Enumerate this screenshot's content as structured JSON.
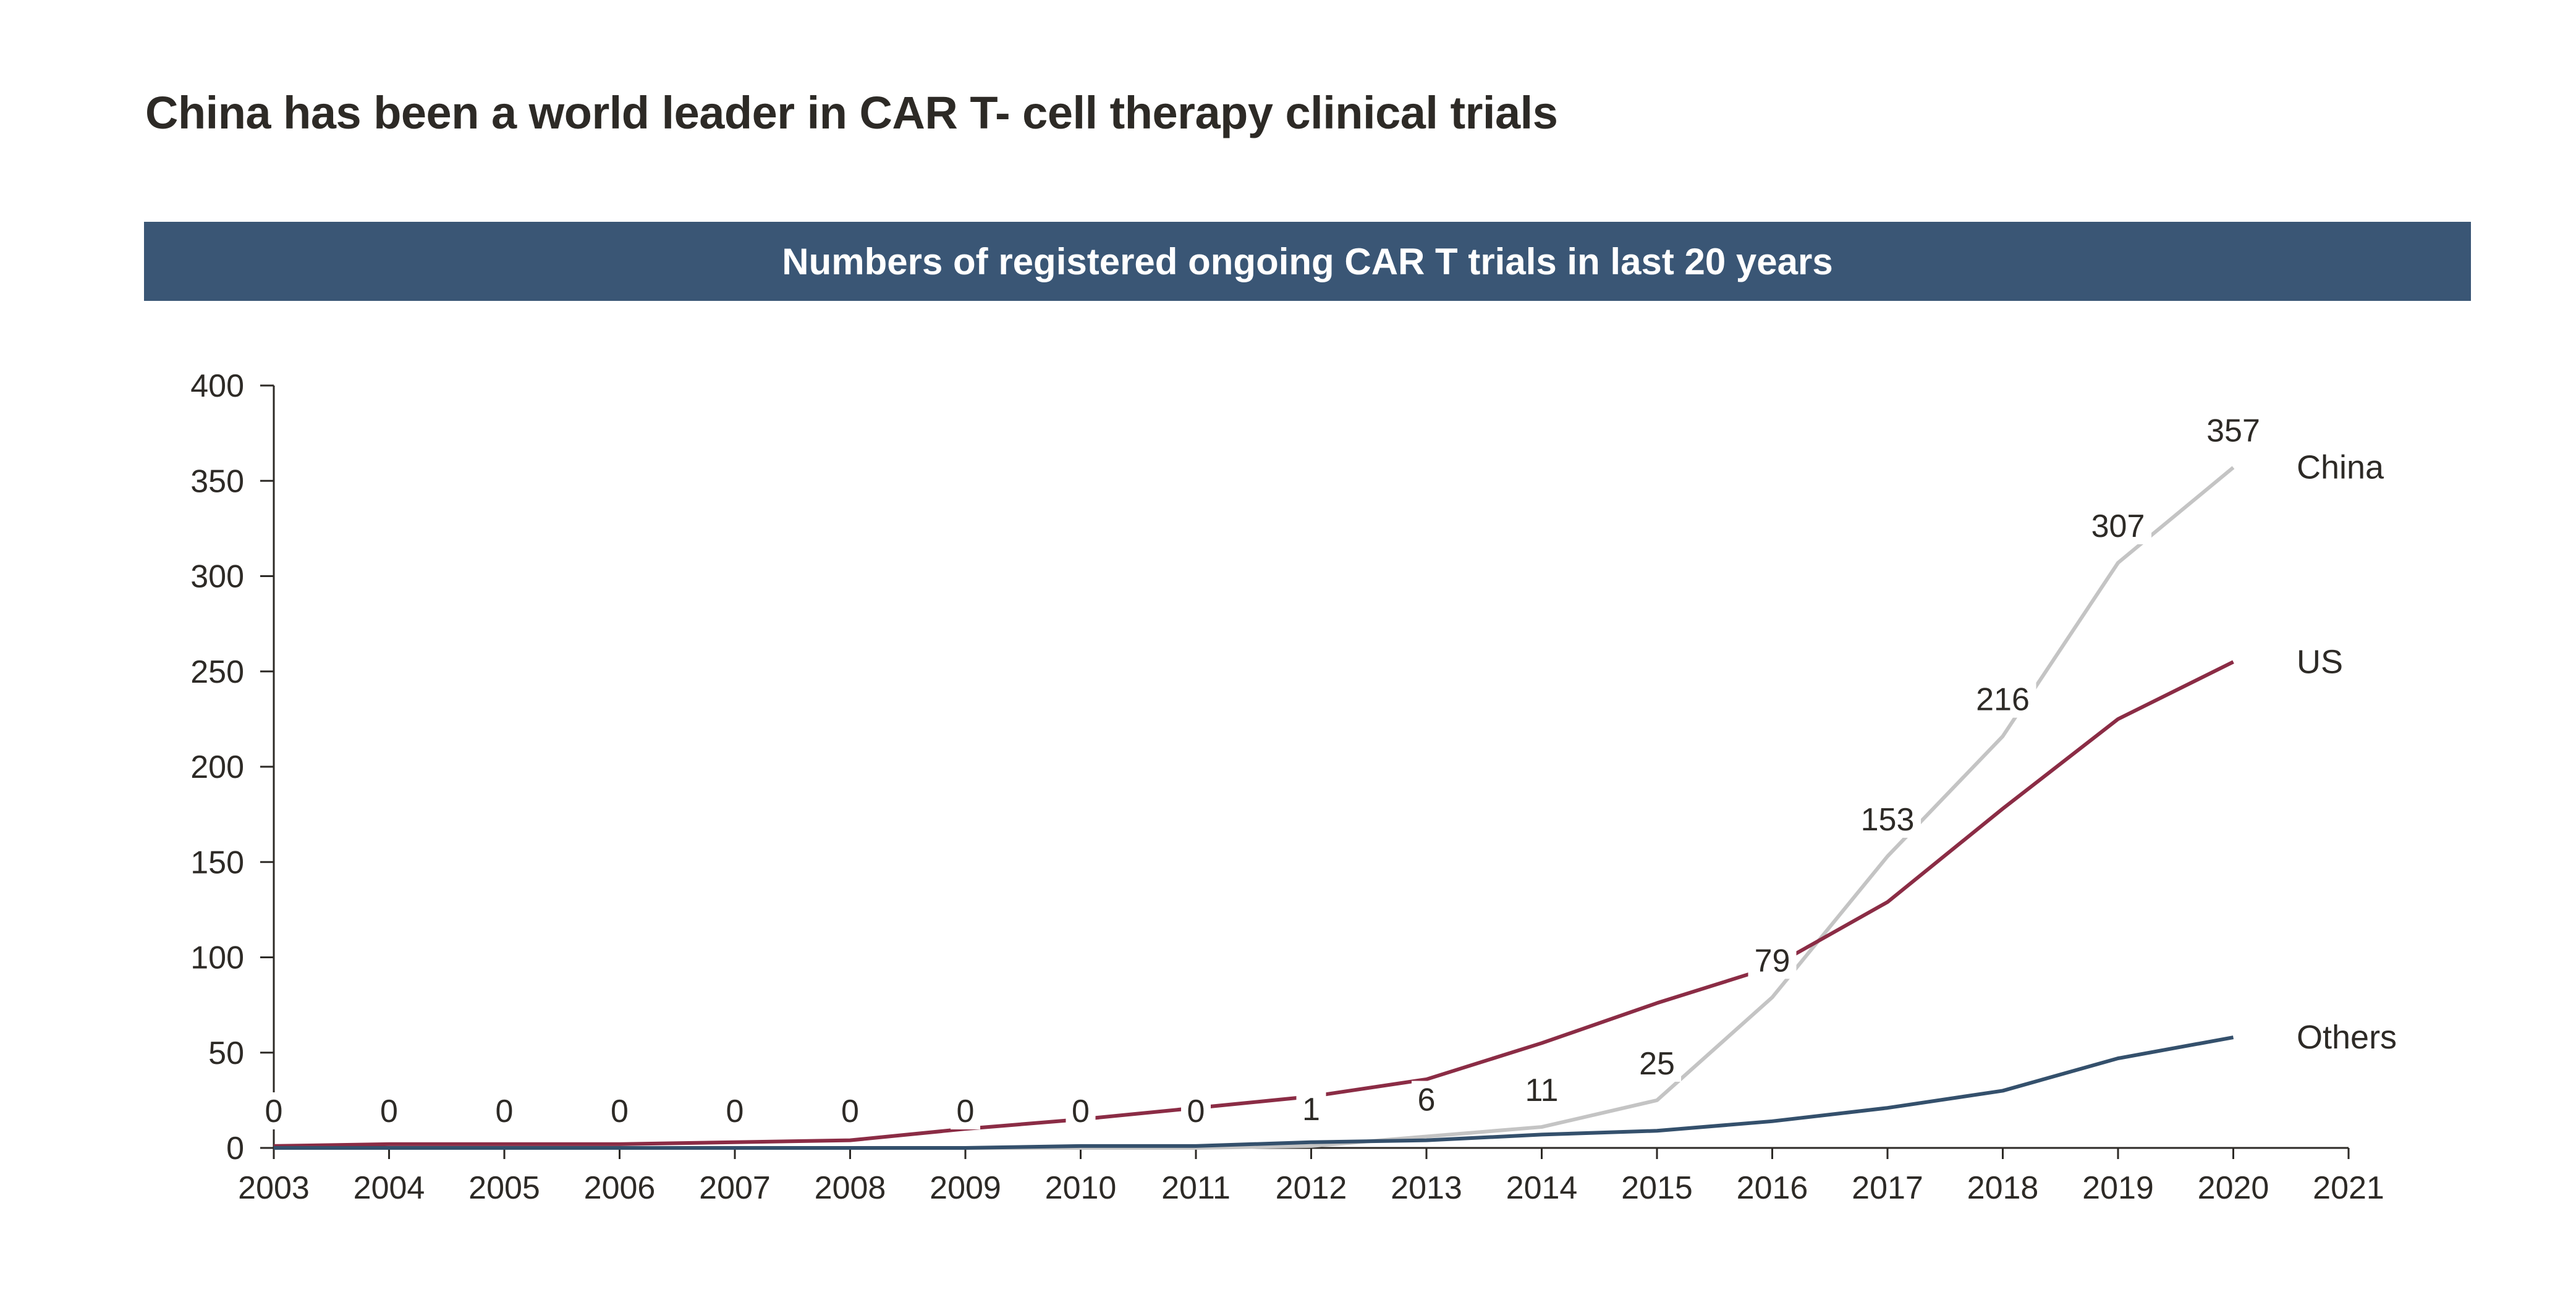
{
  "title": "China has been a world leader in CAR T- cell therapy clinical trials",
  "banner_color": "#3a5675",
  "chart_data": {
    "type": "line",
    "title": "Numbers of registered ongoing CAR T trials in last 20 years",
    "xlabel": "",
    "ylabel": "",
    "x": [
      2003,
      2004,
      2005,
      2006,
      2007,
      2008,
      2009,
      2010,
      2011,
      2012,
      2013,
      2014,
      2015,
      2016,
      2017,
      2018,
      2019,
      2020
    ],
    "x_ticks": [
      "2003",
      "2004",
      "2005",
      "2006",
      "2007",
      "2008",
      "2009",
      "2010",
      "2011",
      "2012",
      "2013",
      "2014",
      "2015",
      "2016",
      "2017",
      "2018",
      "2019",
      "2020",
      "2021"
    ],
    "xlim": [
      2003,
      2021
    ],
    "ylim": [
      0,
      400
    ],
    "y_ticks": [
      "0",
      "50",
      "100",
      "150",
      "200",
      "250",
      "300",
      "350",
      "400"
    ],
    "grid": false,
    "series": [
      {
        "name": "China",
        "color": "#c4c4c4",
        "values": [
          0,
          0,
          0,
          0,
          0,
          0,
          0,
          0,
          0,
          1,
          6,
          11,
          25,
          79,
          153,
          216,
          307,
          357
        ],
        "data_labels": [
          "0",
          "0",
          "0",
          "0",
          "0",
          "0",
          "0",
          "0",
          "0",
          "1",
          "6",
          "11",
          "25",
          "79",
          "153",
          "216",
          "307",
          "357"
        ]
      },
      {
        "name": "US",
        "color": "#8b2c45",
        "values": [
          1,
          2,
          2,
          2,
          3,
          4,
          10,
          15,
          21,
          27,
          36,
          55,
          76,
          95,
          129,
          178,
          225,
          255
        ]
      },
      {
        "name": "Others",
        "color": "#34506c",
        "values": [
          0,
          0,
          0,
          0,
          0,
          0,
          0,
          1,
          1,
          3,
          4,
          7,
          9,
          14,
          21,
          30,
          47,
          58
        ]
      }
    ]
  }
}
